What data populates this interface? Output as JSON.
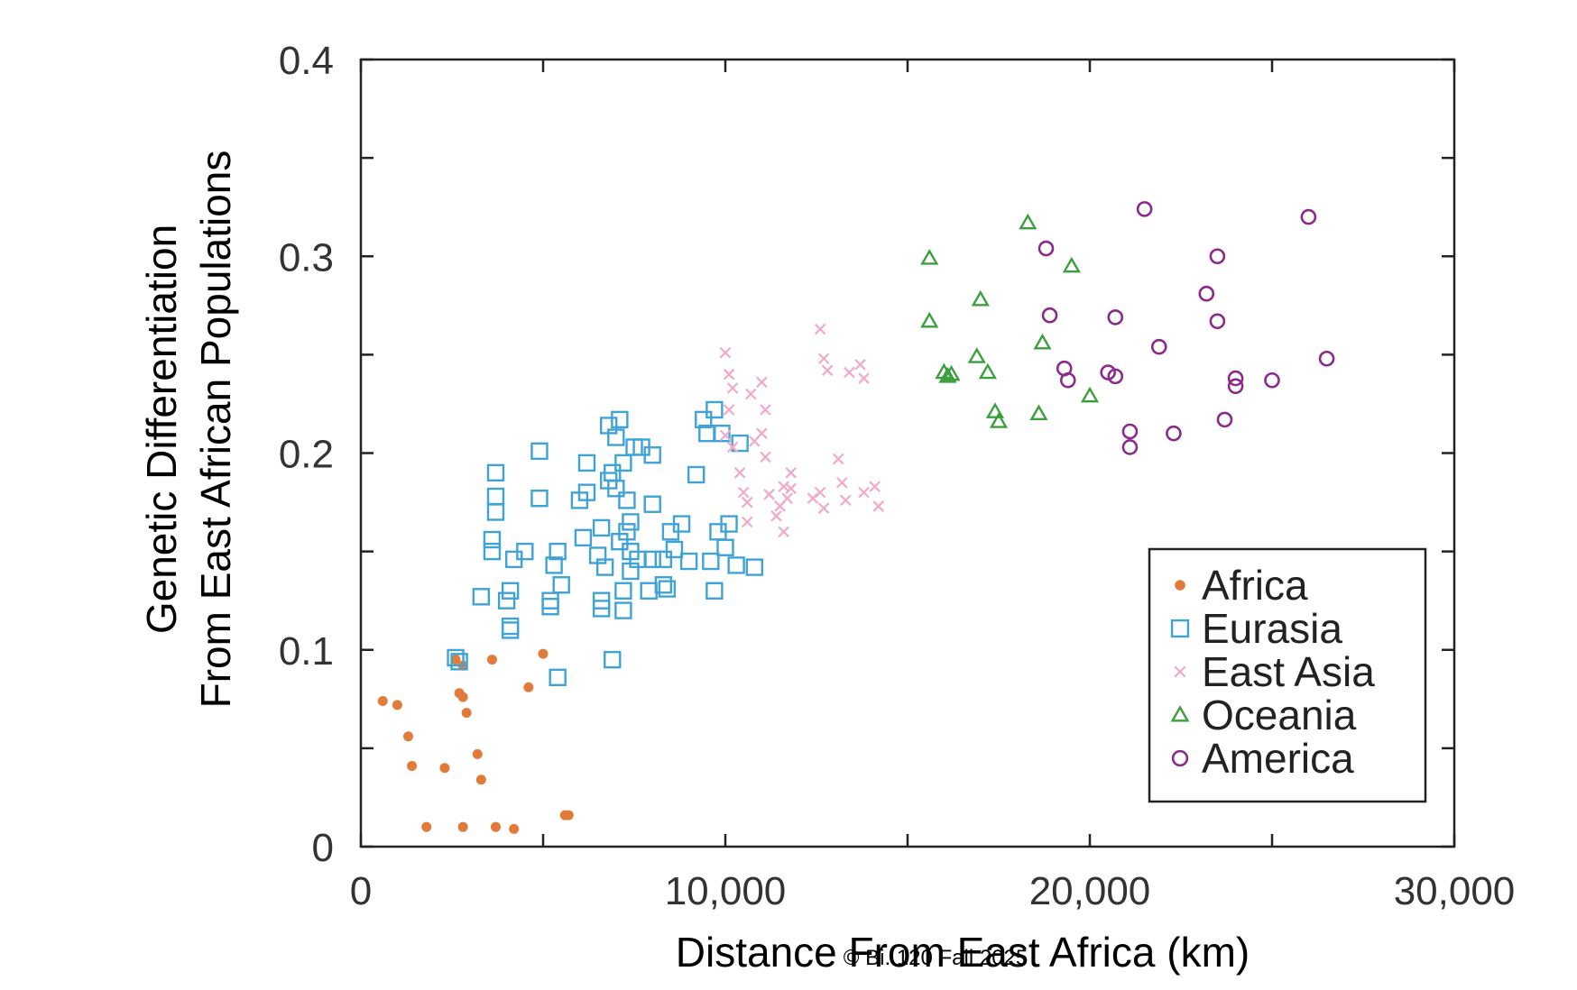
{
  "chart_data": {
    "type": "scatter",
    "title": "",
    "xlabel": "Distance From East Africa (km)",
    "ylabel_lines": [
      "Genetic Differentiation",
      "From East African Populations"
    ],
    "xlim": [
      0,
      30000
    ],
    "ylim": [
      0,
      0.4
    ],
    "xticks": [
      0,
      5000,
      10000,
      15000,
      20000,
      25000,
      30000
    ],
    "yticks": [
      0,
      0.05,
      0.1,
      0.15,
      0.2,
      0.25,
      0.3,
      0.35,
      0.4
    ],
    "xtick_labels": [
      {
        "value": 0,
        "label": "0"
      },
      {
        "value": 10000,
        "label": "10,000"
      },
      {
        "value": 20000,
        "label": "20,000"
      },
      {
        "value": 30000,
        "label": "30,000"
      }
    ],
    "ytick_labels": [
      {
        "value": 0,
        "label": "0"
      },
      {
        "value": 0.1,
        "label": "0.1"
      },
      {
        "value": 0.2,
        "label": "0.2"
      },
      {
        "value": 0.3,
        "label": "0.3"
      },
      {
        "value": 0.4,
        "label": "0.4"
      }
    ],
    "legend_position": "bottom-right",
    "series": [
      {
        "name": "Africa",
        "marker": "dot",
        "color": "#e07b39",
        "points": [
          [
            600,
            0.074
          ],
          [
            1000,
            0.072
          ],
          [
            1300,
            0.056
          ],
          [
            1400,
            0.041
          ],
          [
            2300,
            0.04
          ],
          [
            1800,
            0.01
          ],
          [
            2800,
            0.01
          ],
          [
            3700,
            0.01
          ],
          [
            4200,
            0.009
          ],
          [
            2600,
            0.095
          ],
          [
            2800,
            0.092
          ],
          [
            2700,
            0.078
          ],
          [
            2800,
            0.076
          ],
          [
            2900,
            0.068
          ],
          [
            3600,
            0.095
          ],
          [
            3200,
            0.047
          ],
          [
            3300,
            0.034
          ],
          [
            4600,
            0.081
          ],
          [
            5000,
            0.098
          ],
          [
            5600,
            0.016
          ],
          [
            5700,
            0.016
          ]
        ]
      },
      {
        "name": "Eurasia",
        "marker": "square",
        "color": "#3fa3d8",
        "points": [
          [
            2600,
            0.096
          ],
          [
            2700,
            0.094
          ],
          [
            3300,
            0.127
          ],
          [
            3600,
            0.15
          ],
          [
            3600,
            0.156
          ],
          [
            3700,
            0.17
          ],
          [
            3700,
            0.178
          ],
          [
            3700,
            0.19
          ],
          [
            4000,
            0.125
          ],
          [
            4100,
            0.112
          ],
          [
            4100,
            0.11
          ],
          [
            4100,
            0.13
          ],
          [
            4200,
            0.146
          ],
          [
            4500,
            0.15
          ],
          [
            4900,
            0.201
          ],
          [
            4900,
            0.177
          ],
          [
            5200,
            0.122
          ],
          [
            5200,
            0.125
          ],
          [
            5300,
            0.143
          ],
          [
            5400,
            0.15
          ],
          [
            5400,
            0.086
          ],
          [
            5500,
            0.133
          ],
          [
            6000,
            0.176
          ],
          [
            6100,
            0.157
          ],
          [
            6200,
            0.195
          ],
          [
            6200,
            0.18
          ],
          [
            6500,
            0.148
          ],
          [
            6600,
            0.125
          ],
          [
            6600,
            0.121
          ],
          [
            6600,
            0.162
          ],
          [
            6700,
            0.142
          ],
          [
            6800,
            0.186
          ],
          [
            6800,
            0.214
          ],
          [
            6900,
            0.095
          ],
          [
            6900,
            0.19
          ],
          [
            7000,
            0.182
          ],
          [
            7000,
            0.208
          ],
          [
            7100,
            0.217
          ],
          [
            7100,
            0.155
          ],
          [
            7200,
            0.195
          ],
          [
            7200,
            0.13
          ],
          [
            7200,
            0.12
          ],
          [
            7300,
            0.16
          ],
          [
            7300,
            0.176
          ],
          [
            7400,
            0.14
          ],
          [
            7400,
            0.15
          ],
          [
            7400,
            0.165
          ],
          [
            7500,
            0.203
          ],
          [
            7600,
            0.146
          ],
          [
            7700,
            0.203
          ],
          [
            7900,
            0.13
          ],
          [
            8000,
            0.174
          ],
          [
            8000,
            0.146
          ],
          [
            8000,
            0.199
          ],
          [
            8300,
            0.146
          ],
          [
            8300,
            0.133
          ],
          [
            8400,
            0.131
          ],
          [
            8500,
            0.16
          ],
          [
            8600,
            0.151
          ],
          [
            8800,
            0.164
          ],
          [
            9000,
            0.145
          ],
          [
            9200,
            0.189
          ],
          [
            9400,
            0.217
          ],
          [
            9500,
            0.21
          ],
          [
            9600,
            0.145
          ],
          [
            9700,
            0.222
          ],
          [
            9700,
            0.13
          ],
          [
            9800,
            0.16
          ],
          [
            9900,
            0.21
          ],
          [
            10000,
            0.152
          ],
          [
            10100,
            0.164
          ],
          [
            10300,
            0.143
          ],
          [
            10400,
            0.205
          ],
          [
            10800,
            0.142
          ]
        ]
      },
      {
        "name": "East Asia",
        "marker": "x",
        "color": "#f2a9c9",
        "points": [
          [
            10000,
            0.251
          ],
          [
            10000,
            0.209
          ],
          [
            10100,
            0.24
          ],
          [
            10100,
            0.222
          ],
          [
            10200,
            0.233
          ],
          [
            10200,
            0.203
          ],
          [
            10400,
            0.19
          ],
          [
            10500,
            0.18
          ],
          [
            10600,
            0.175
          ],
          [
            10600,
            0.165
          ],
          [
            10700,
            0.23
          ],
          [
            10800,
            0.206
          ],
          [
            11000,
            0.236
          ],
          [
            11000,
            0.21
          ],
          [
            11100,
            0.198
          ],
          [
            11100,
            0.222
          ],
          [
            11200,
            0.179
          ],
          [
            11400,
            0.168
          ],
          [
            11500,
            0.173
          ],
          [
            11600,
            0.16
          ],
          [
            11600,
            0.183
          ],
          [
            11700,
            0.177
          ],
          [
            11800,
            0.182
          ],
          [
            11800,
            0.19
          ],
          [
            12400,
            0.177
          ],
          [
            12600,
            0.18
          ],
          [
            12600,
            0.263
          ],
          [
            12700,
            0.248
          ],
          [
            12700,
            0.172
          ],
          [
            12800,
            0.242
          ],
          [
            13100,
            0.197
          ],
          [
            13200,
            0.185
          ],
          [
            13300,
            0.176
          ],
          [
            13400,
            0.241
          ],
          [
            13700,
            0.245
          ],
          [
            13800,
            0.238
          ],
          [
            13800,
            0.18
          ],
          [
            14100,
            0.183
          ],
          [
            14200,
            0.173
          ]
        ]
      },
      {
        "name": "Oceania",
        "marker": "triangle",
        "color": "#3a9f3c",
        "points": [
          [
            15600,
            0.299
          ],
          [
            15600,
            0.267
          ],
          [
            16000,
            0.241
          ],
          [
            16100,
            0.239
          ],
          [
            16200,
            0.24
          ],
          [
            17000,
            0.278
          ],
          [
            16900,
            0.249
          ],
          [
            17200,
            0.241
          ],
          [
            17400,
            0.221
          ],
          [
            17500,
            0.216
          ],
          [
            18300,
            0.317
          ],
          [
            18600,
            0.22
          ],
          [
            18700,
            0.256
          ],
          [
            19500,
            0.295
          ],
          [
            20000,
            0.229
          ]
        ]
      },
      {
        "name": "America",
        "marker": "circle",
        "color": "#8b2a8b",
        "points": [
          [
            18800,
            0.304
          ],
          [
            18900,
            0.27
          ],
          [
            19300,
            0.243
          ],
          [
            19400,
            0.237
          ],
          [
            20500,
            0.241
          ],
          [
            20700,
            0.269
          ],
          [
            20700,
            0.239
          ],
          [
            21100,
            0.211
          ],
          [
            21100,
            0.203
          ],
          [
            21500,
            0.324
          ],
          [
            21900,
            0.254
          ],
          [
            22300,
            0.21
          ],
          [
            23200,
            0.281
          ],
          [
            23500,
            0.3
          ],
          [
            23500,
            0.267
          ],
          [
            23700,
            0.217
          ],
          [
            24000,
            0.238
          ],
          [
            24000,
            0.234
          ],
          [
            25000,
            0.237
          ],
          [
            26000,
            0.32
          ],
          [
            26500,
            0.248
          ]
        ]
      }
    ],
    "annotations": [
      "© Bi. 120 Fall 2025"
    ]
  }
}
